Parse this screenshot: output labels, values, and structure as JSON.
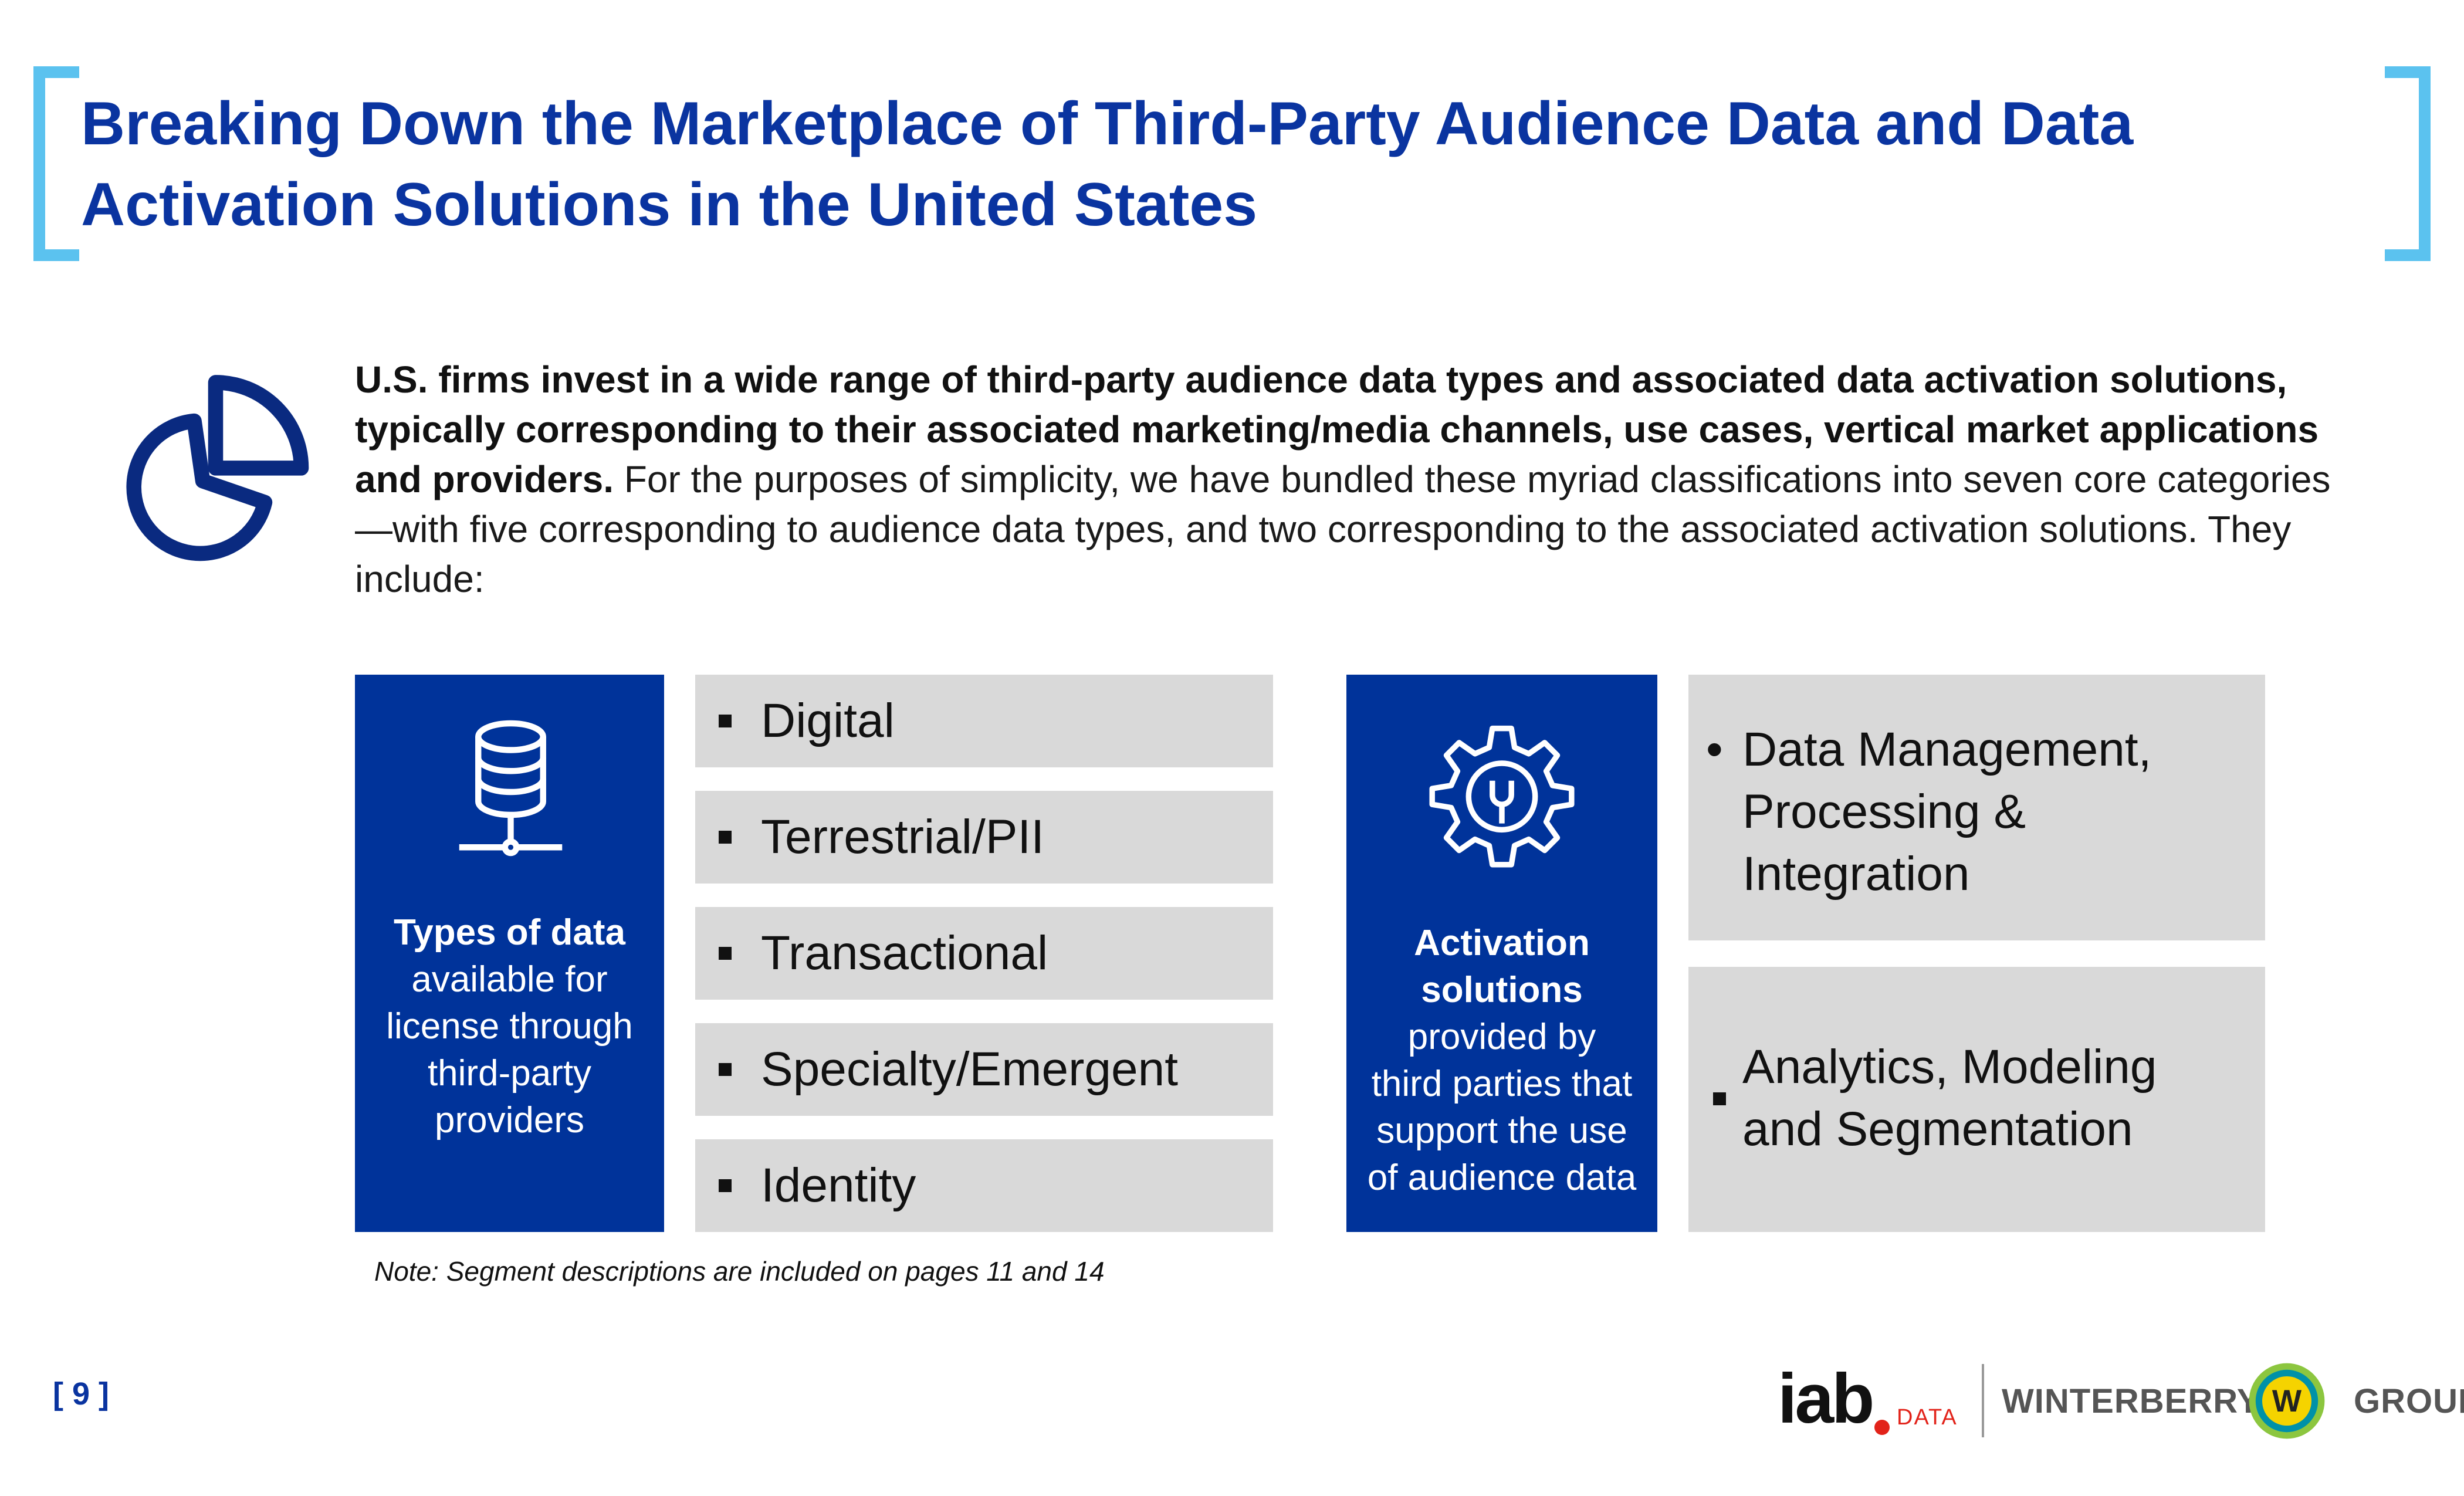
{
  "title": "Breaking Down the Marketplace of Third-Party Audience Data and Data Activation Solutions in the United States",
  "intro": {
    "bold": "U.S. firms invest in a wide range of third-party audience data types and associated data activation solutions, typically corresponding to their associated marketing/media channels, use cases, vertical market applications and providers.",
    "regular": " For the purposes of simplicity, we have bundled these myriad classifications into seven core categories—with five corresponding to audience data types, and two corresponding to the associated activation solutions. They include:"
  },
  "types_box": {
    "bold": "Types of data",
    "rest": [
      "available for",
      "license through",
      "third-party",
      "providers"
    ]
  },
  "data_types": [
    "Digital",
    "Terrestrial/PII",
    "Transactional",
    "Specialty/Emergent",
    "Identity"
  ],
  "activation_box": {
    "bold": [
      "Activation",
      "solutions"
    ],
    "rest": [
      "provided by",
      "third parties that",
      "support the use",
      "of audience data"
    ]
  },
  "activation_items": [
    {
      "marker": "•",
      "lines": [
        "Data Management,",
        "Processing &",
        "Integration"
      ]
    },
    {
      "marker": "▪",
      "lines": [
        "Analytics, Modeling",
        "and Segmentation"
      ]
    }
  ],
  "note": "Note: Segment descriptions are included on pages 11 and 14",
  "page_number": "[ 9 ]",
  "logos": {
    "iab": "iab",
    "iab_sub": "DATA",
    "winterberry_left": "WINTERBERRY",
    "winterberry_mark": "W",
    "winterberry_right": "GROUP"
  },
  "colors": {
    "brand_blue": "#00339a",
    "title_blue": "#0a34a0",
    "bracket": "#5bc2ef",
    "grey_box": "#d9d9d9"
  },
  "icons": [
    "pie-chart-icon",
    "database-icon",
    "gear-wrench-icon"
  ]
}
